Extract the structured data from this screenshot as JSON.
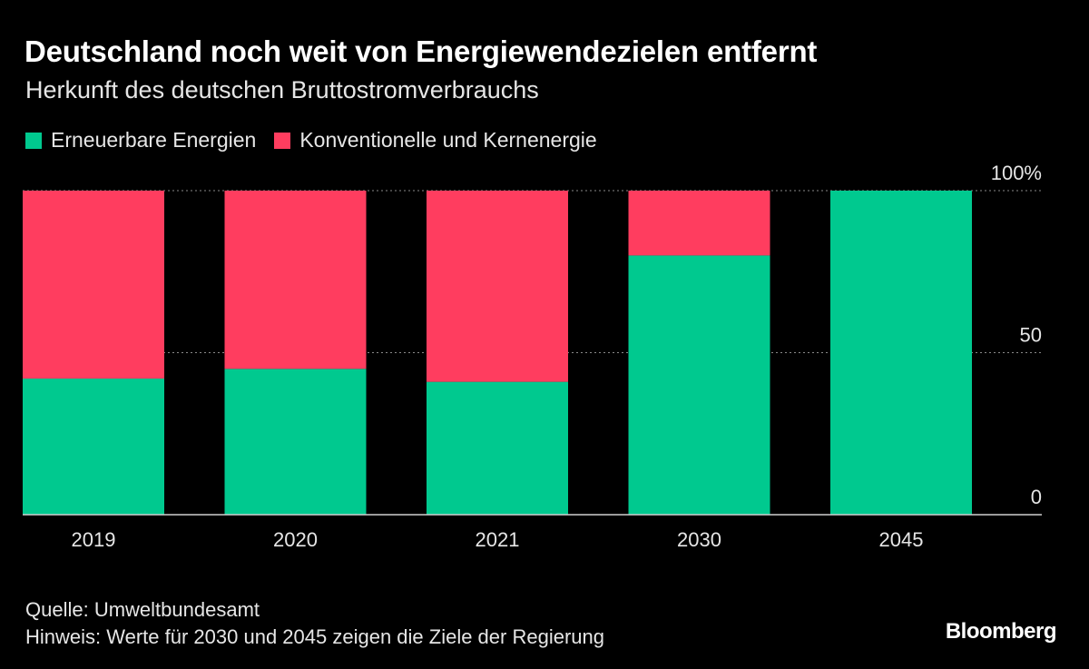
{
  "header": {
    "title": "Deutschland noch weit von Energiewendezielen entfernt",
    "subtitle": "Herkunft des deutschen Bruttostromverbrauchs"
  },
  "legend": {
    "items": [
      {
        "label": "Erneuerbare Energien",
        "color": "#00c98f"
      },
      {
        "label": "Konventionelle und Kernenergie",
        "color": "#ff3d5f"
      }
    ]
  },
  "chart_data": {
    "type": "bar",
    "stacked": true,
    "categories": [
      "2019",
      "2020",
      "2021",
      "2030",
      "2045"
    ],
    "series": [
      {
        "name": "Erneuerbare Energien",
        "color": "#00c98f",
        "values": [
          42,
          45,
          41,
          80,
          100
        ]
      },
      {
        "name": "Konventionelle und Kernenergie",
        "color": "#ff3d5f",
        "values": [
          58,
          55,
          59,
          20,
          0
        ]
      }
    ],
    "ylim": [
      0,
      100
    ],
    "yticks": [
      {
        "value": 0,
        "label": "0"
      },
      {
        "value": 50,
        "label": "50"
      },
      {
        "value": 100,
        "label": "100%"
      }
    ],
    "grid": true,
    "title": "Deutschland noch weit von Energiewendezielen entfernt",
    "xlabel": "",
    "ylabel": ""
  },
  "footer": {
    "source": "Quelle: Umweltbundesamt",
    "note": "Hinweis: Werte für 2030 und 2045 zeigen die Ziele der Regierung",
    "brand": "Bloomberg"
  }
}
